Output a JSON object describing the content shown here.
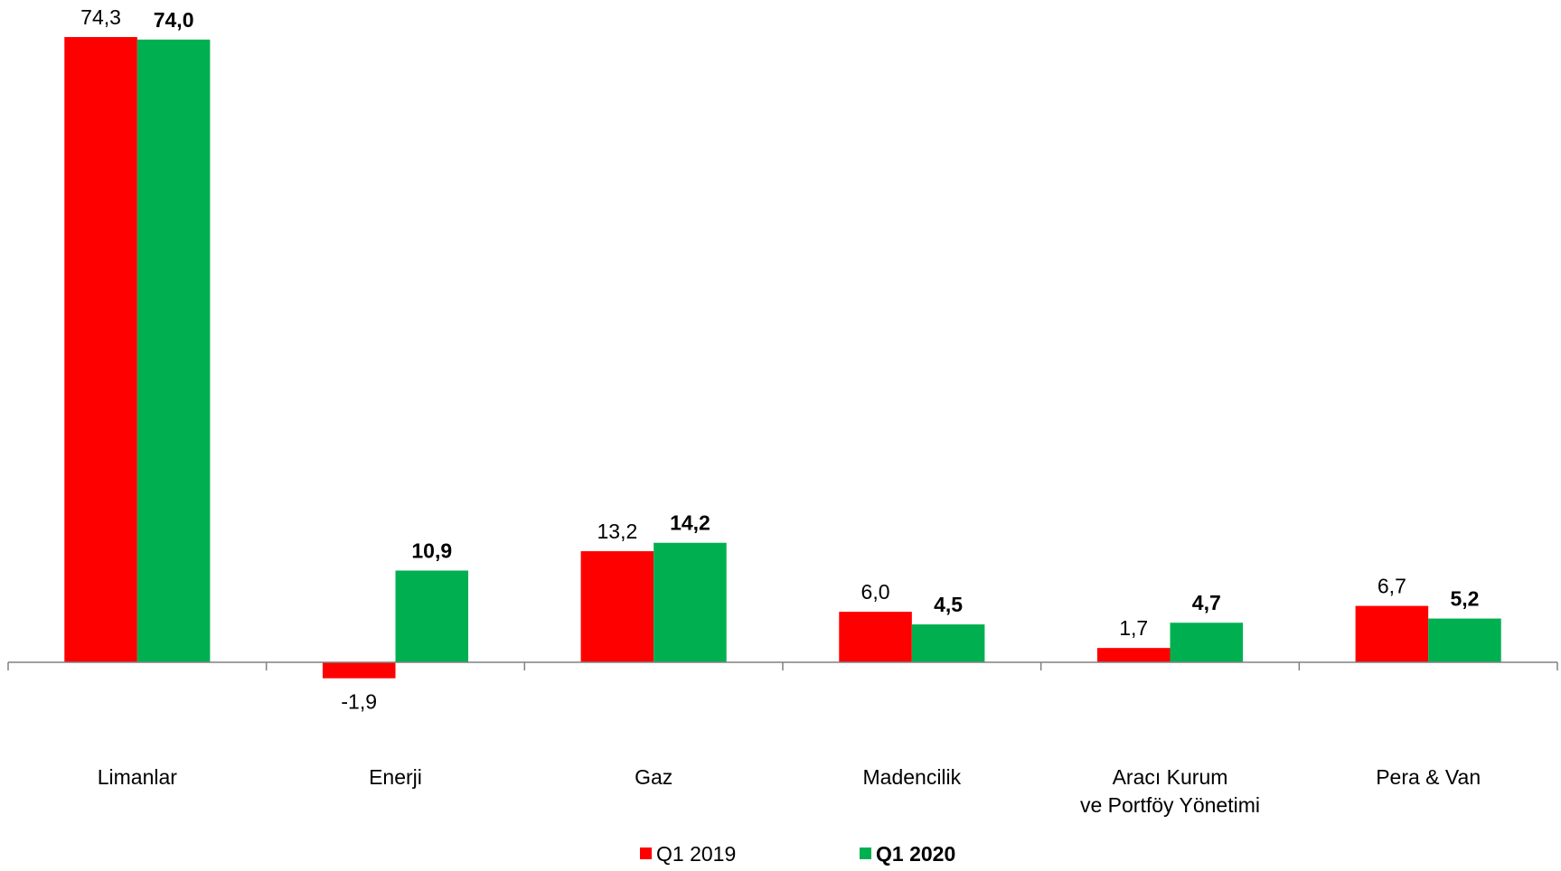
{
  "chart_data": {
    "type": "bar",
    "categories": [
      "Limanlar",
      "Enerji",
      "Gaz",
      "Madencilik",
      "Aracı Kurum\nve Portföy Yönetimi",
      "Pera & Van"
    ],
    "series": [
      {
        "name": "Q1 2019",
        "color": "#ff0000",
        "values": [
          74.3,
          -1.9,
          13.2,
          6.0,
          1.7,
          6.7
        ],
        "value_labels": [
          "74,3",
          "-1,9",
          "13,2",
          "6,0",
          "1,7",
          "6,7"
        ]
      },
      {
        "name": "Q1 2020",
        "color": "#00b050",
        "values": [
          74.0,
          10.9,
          14.2,
          4.5,
          4.7,
          5.2
        ],
        "value_labels": [
          "74,0",
          "10,9",
          "14,2",
          "4,5",
          "4,7",
          "5,2"
        ]
      }
    ],
    "legend": "bottom"
  }
}
